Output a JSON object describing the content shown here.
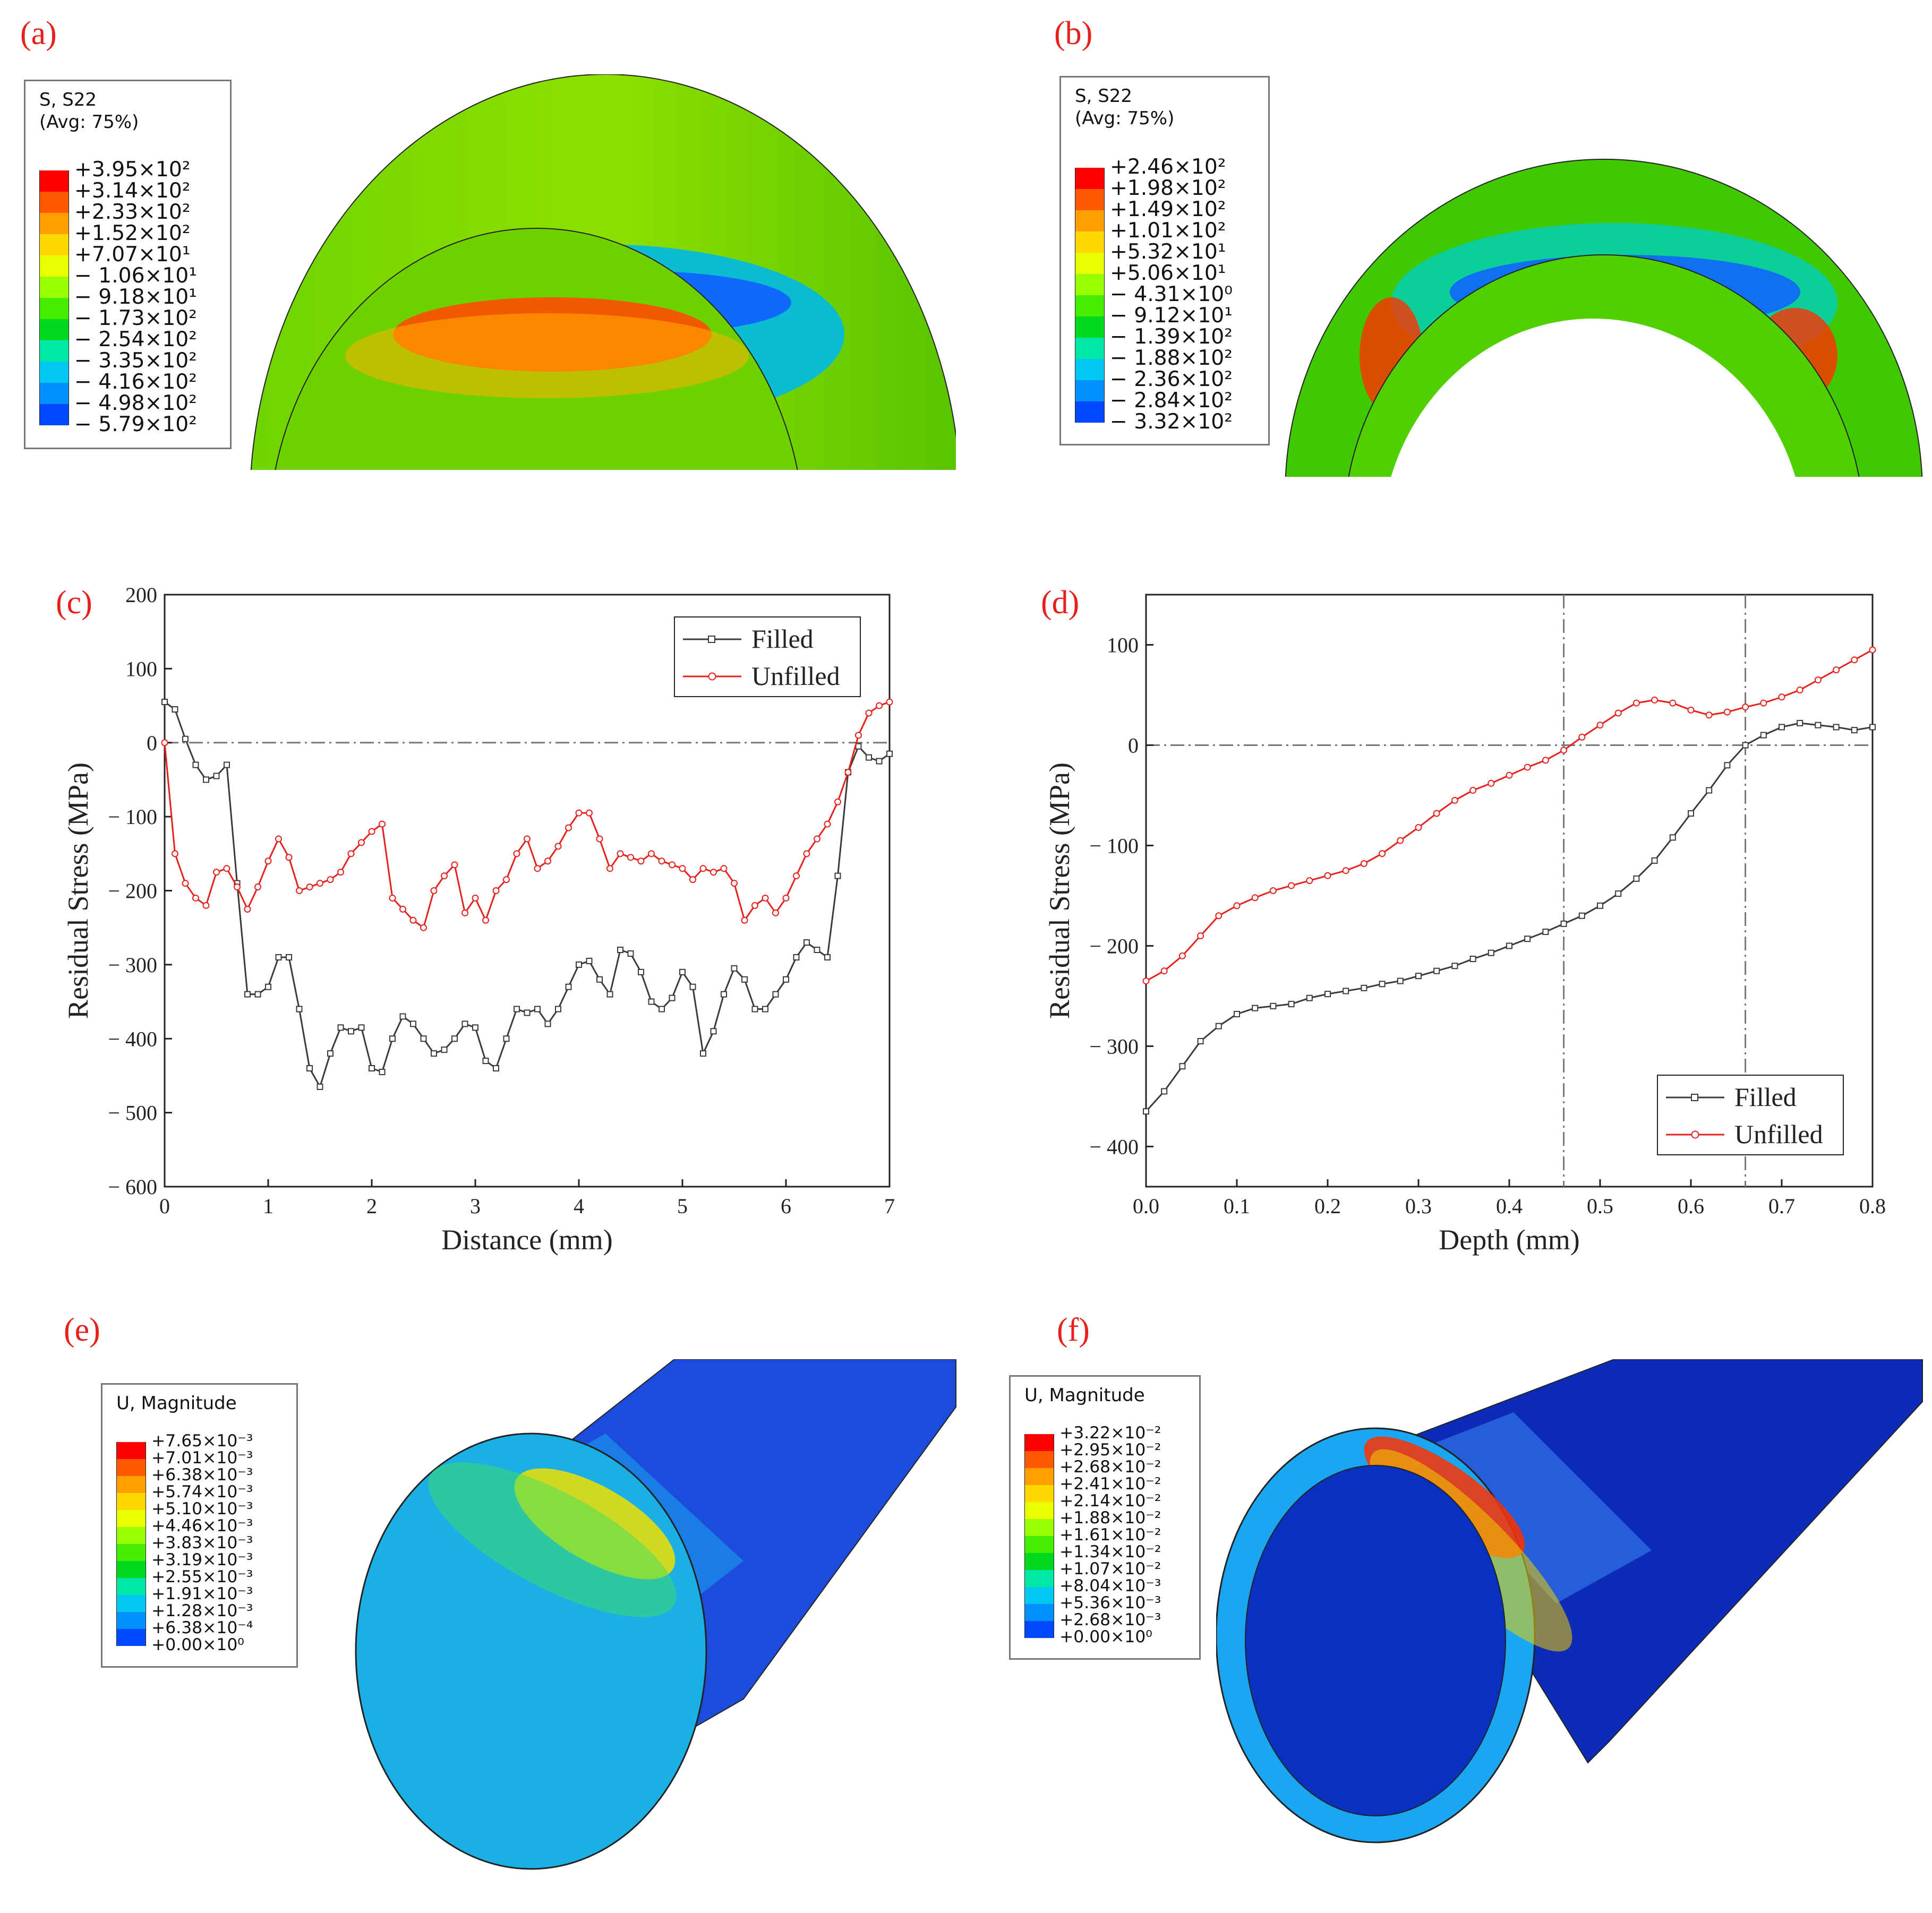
{
  "panels": {
    "a": {
      "label": "(a)",
      "legend_title_1": "S, S22",
      "legend_title_2": "(Avg: 75%)",
      "values": [
        "+3.95×10²",
        "+3.14×10²",
        "+2.33×10²",
        "+1.52×10²",
        "+7.07×10¹",
        "− 1.06×10¹",
        "− 9.18×10¹",
        "− 1.73×10²",
        "− 2.54×10²",
        "− 3.35×10²",
        "− 4.16×10²",
        "− 4.98×10²",
        "− 5.79×10²"
      ]
    },
    "b": {
      "label": "(b)",
      "legend_title_1": "S, S22",
      "legend_title_2": "(Avg: 75%)",
      "values": [
        "+2.46×10²",
        "+1.98×10²",
        "+1.49×10²",
        "+1.01×10²",
        "+5.32×10¹",
        "+5.06×10¹",
        "− 4.31×10⁰",
        "− 9.12×10¹",
        "− 1.39×10²",
        "− 1.88×10²",
        "− 2.36×10²",
        "− 2.84×10²",
        "− 3.32×10²"
      ]
    },
    "c": {
      "label": "(c)"
    },
    "d": {
      "label": "(d)"
    },
    "e": {
      "label": "(e)",
      "legend_title_1": "U, Magnitude",
      "values": [
        "+7.65×10⁻³",
        "+7.01×10⁻³",
        "+6.38×10⁻³",
        "+5.74×10⁻³",
        "+5.10×10⁻³",
        "+4.46×10⁻³",
        "+3.83×10⁻³",
        "+3.19×10⁻³",
        "+2.55×10⁻³",
        "+1.91×10⁻³",
        "+1.28×10⁻³",
        "+6.38×10⁻⁴",
        "+0.00×10⁰"
      ]
    },
    "f": {
      "label": "(f)",
      "legend_title_1": "U, Magnitude",
      "values": [
        "+3.22×10⁻²",
        "+2.95×10⁻²",
        "+2.68×10⁻²",
        "+2.41×10⁻²",
        "+2.14×10⁻²",
        "+1.88×10⁻²",
        "+1.61×10⁻²",
        "+1.34×10⁻²",
        "+1.07×10⁻²",
        "+8.04×10⁻³",
        "+5.36×10⁻³",
        "+2.68×10⁻³",
        "+0.00×10⁰"
      ]
    }
  },
  "colors": {
    "contour": [
      "#ff0000",
      "#ff5a00",
      "#ffa000",
      "#ffd800",
      "#e8ff00",
      "#9aff00",
      "#45ee00",
      "#00d820",
      "#00e8a8",
      "#00c8f0",
      "#0090ff",
      "#0048ff",
      "#0000ff"
    ],
    "filled": "#3a3a3a",
    "unfilled": "#e8201c",
    "label": "#e8201c"
  },
  "chart_data": [
    {
      "type": "line",
      "panel": "c",
      "xlabel": "Distance (mm)",
      "ylabel": "Residual Stress (MPa)",
      "xlim": [
        0,
        7
      ],
      "ylim": [
        -600,
        200
      ],
      "xticks": [
        0,
        1,
        2,
        3,
        4,
        5,
        6,
        7
      ],
      "yticks": [
        -600,
        -500,
        -400,
        -300,
        -200,
        -100,
        0,
        100,
        200
      ],
      "xtick_labels": [
        "0",
        "1",
        "2",
        "3",
        "4",
        "5",
        "6",
        "7"
      ],
      "ytick_labels": [
        "− 600",
        "− 500",
        "− 400",
        "− 300",
        "− 200",
        "− 100",
        "0",
        "100",
        "200"
      ],
      "ref_h": [
        0
      ],
      "ref_v": [],
      "legend": {
        "position": "top-right",
        "labels": [
          "Filled",
          "Unfilled"
        ]
      },
      "series": [
        {
          "name": "Filled",
          "x": [
            0,
            0.1,
            0.2,
            0.3,
            0.4,
            0.5,
            0.6,
            0.7,
            0.8,
            0.9,
            1.0,
            1.1,
            1.2,
            1.3,
            1.4,
            1.5,
            1.6,
            1.7,
            1.8,
            1.9,
            2.0,
            2.1,
            2.2,
            2.3,
            2.4,
            2.5,
            2.6,
            2.7,
            2.8,
            2.9,
            3.0,
            3.1,
            3.2,
            3.3,
            3.4,
            3.5,
            3.6,
            3.7,
            3.8,
            3.9,
            4.0,
            4.1,
            4.2,
            4.3,
            4.4,
            4.5,
            4.6,
            4.7,
            4.8,
            4.9,
            5.0,
            5.1,
            5.2,
            5.3,
            5.4,
            5.5,
            5.6,
            5.7,
            5.8,
            5.9,
            6.0,
            6.1,
            6.2,
            6.3,
            6.4,
            6.5,
            6.6,
            6.7,
            6.8,
            6.9,
            7.0
          ],
          "y": [
            55,
            45,
            5,
            -30,
            -50,
            -45,
            -30,
            -190,
            -340,
            -340,
            -330,
            -290,
            -290,
            -360,
            -440,
            -465,
            -420,
            -385,
            -390,
            -385,
            -440,
            -445,
            -400,
            -370,
            -380,
            -400,
            -420,
            -415,
            -400,
            -380,
            -385,
            -430,
            -440,
            -400,
            -360,
            -365,
            -360,
            -380,
            -360,
            -330,
            -300,
            -295,
            -320,
            -340,
            -280,
            -285,
            -310,
            -350,
            -360,
            -345,
            -310,
            -330,
            -420,
            -390,
            -340,
            -305,
            -320,
            -360,
            -360,
            -340,
            -320,
            -290,
            -270,
            -280,
            -290,
            -180,
            -40,
            -5,
            -20,
            -25,
            -15
          ]
        },
        {
          "name": "Unfilled",
          "x": [
            0,
            0.1,
            0.2,
            0.3,
            0.4,
            0.5,
            0.6,
            0.7,
            0.8,
            0.9,
            1.0,
            1.1,
            1.2,
            1.3,
            1.4,
            1.5,
            1.6,
            1.7,
            1.8,
            1.9,
            2.0,
            2.1,
            2.2,
            2.3,
            2.4,
            2.5,
            2.6,
            2.7,
            2.8,
            2.9,
            3.0,
            3.1,
            3.2,
            3.3,
            3.4,
            3.5,
            3.6,
            3.7,
            3.8,
            3.9,
            4.0,
            4.1,
            4.2,
            4.3,
            4.4,
            4.5,
            4.6,
            4.7,
            4.8,
            4.9,
            5.0,
            5.1,
            5.2,
            5.3,
            5.4,
            5.5,
            5.6,
            5.7,
            5.8,
            5.9,
            6.0,
            6.1,
            6.2,
            6.3,
            6.4,
            6.5,
            6.6,
            6.7,
            6.8,
            6.9,
            7.0
          ],
          "y": [
            0,
            -150,
            -190,
            -210,
            -220,
            -175,
            -170,
            -195,
            -225,
            -195,
            -160,
            -130,
            -155,
            -200,
            -195,
            -190,
            -185,
            -175,
            -150,
            -135,
            -120,
            -110,
            -210,
            -225,
            -240,
            -250,
            -200,
            -180,
            -165,
            -230,
            -210,
            -240,
            -200,
            -185,
            -150,
            -130,
            -170,
            -160,
            -140,
            -115,
            -95,
            -95,
            -130,
            -170,
            -150,
            -155,
            -160,
            -150,
            -160,
            -165,
            -170,
            -185,
            -170,
            -175,
            -170,
            -190,
            -240,
            -220,
            -210,
            -230,
            -210,
            -180,
            -150,
            -130,
            -110,
            -80,
            -40,
            10,
            40,
            50,
            55
          ]
        }
      ]
    },
    {
      "type": "line",
      "panel": "d",
      "xlabel": "Depth (mm)",
      "ylabel": "Residual Stress (MPa)",
      "xlim": [
        0,
        0.8
      ],
      "ylim": [
        -440,
        150
      ],
      "xticks": [
        0,
        0.1,
        0.2,
        0.3,
        0.4,
        0.5,
        0.6,
        0.7,
        0.8
      ],
      "yticks": [
        -400,
        -300,
        -200,
        -100,
        0,
        100
      ],
      "xtick_labels": [
        "0.0",
        "0.1",
        "0.2",
        "0.3",
        "0.4",
        "0.5",
        "0.6",
        "0.7",
        "0.8"
      ],
      "ytick_labels": [
        "− 400",
        "− 300",
        "− 200",
        "− 100",
        "0",
        "100"
      ],
      "ref_h": [
        0
      ],
      "ref_v": [
        0.46,
        0.66
      ],
      "legend": {
        "position": "bottom-right",
        "labels": [
          "Filled",
          "Unfilled"
        ]
      },
      "series": [
        {
          "name": "Filled",
          "x": [
            0,
            0.02,
            0.04,
            0.06,
            0.08,
            0.1,
            0.12,
            0.14,
            0.16,
            0.18,
            0.2,
            0.22,
            0.24,
            0.26,
            0.28,
            0.3,
            0.32,
            0.34,
            0.36,
            0.38,
            0.4,
            0.42,
            0.44,
            0.46,
            0.48,
            0.5,
            0.52,
            0.54,
            0.56,
            0.58,
            0.6,
            0.62,
            0.64,
            0.66,
            0.68,
            0.7,
            0.72,
            0.74,
            0.76,
            0.78,
            0.8
          ],
          "y": [
            -365,
            -345,
            -320,
            -295,
            -280,
            -268,
            -262,
            -260,
            -258,
            -252,
            -248,
            -245,
            -242,
            -238,
            -235,
            -230,
            -225,
            -220,
            -213,
            -207,
            -200,
            -193,
            -186,
            -178,
            -170,
            -160,
            -148,
            -133,
            -115,
            -92,
            -68,
            -45,
            -20,
            0,
            10,
            18,
            22,
            20,
            18,
            15,
            18
          ]
        },
        {
          "name": "Unfilled",
          "x": [
            0,
            0.02,
            0.04,
            0.06,
            0.08,
            0.1,
            0.12,
            0.14,
            0.16,
            0.18,
            0.2,
            0.22,
            0.24,
            0.26,
            0.28,
            0.3,
            0.32,
            0.34,
            0.36,
            0.38,
            0.4,
            0.42,
            0.44,
            0.46,
            0.48,
            0.5,
            0.52,
            0.54,
            0.56,
            0.58,
            0.6,
            0.62,
            0.64,
            0.66,
            0.68,
            0.7,
            0.72,
            0.74,
            0.76,
            0.78,
            0.8
          ],
          "y": [
            -235,
            -225,
            -210,
            -190,
            -170,
            -160,
            -152,
            -145,
            -140,
            -135,
            -130,
            -125,
            -118,
            -108,
            -95,
            -82,
            -68,
            -55,
            -45,
            -38,
            -30,
            -22,
            -15,
            -5,
            8,
            20,
            32,
            42,
            45,
            42,
            35,
            30,
            33,
            38,
            42,
            48,
            55,
            65,
            75,
            85,
            95
          ]
        }
      ]
    }
  ]
}
